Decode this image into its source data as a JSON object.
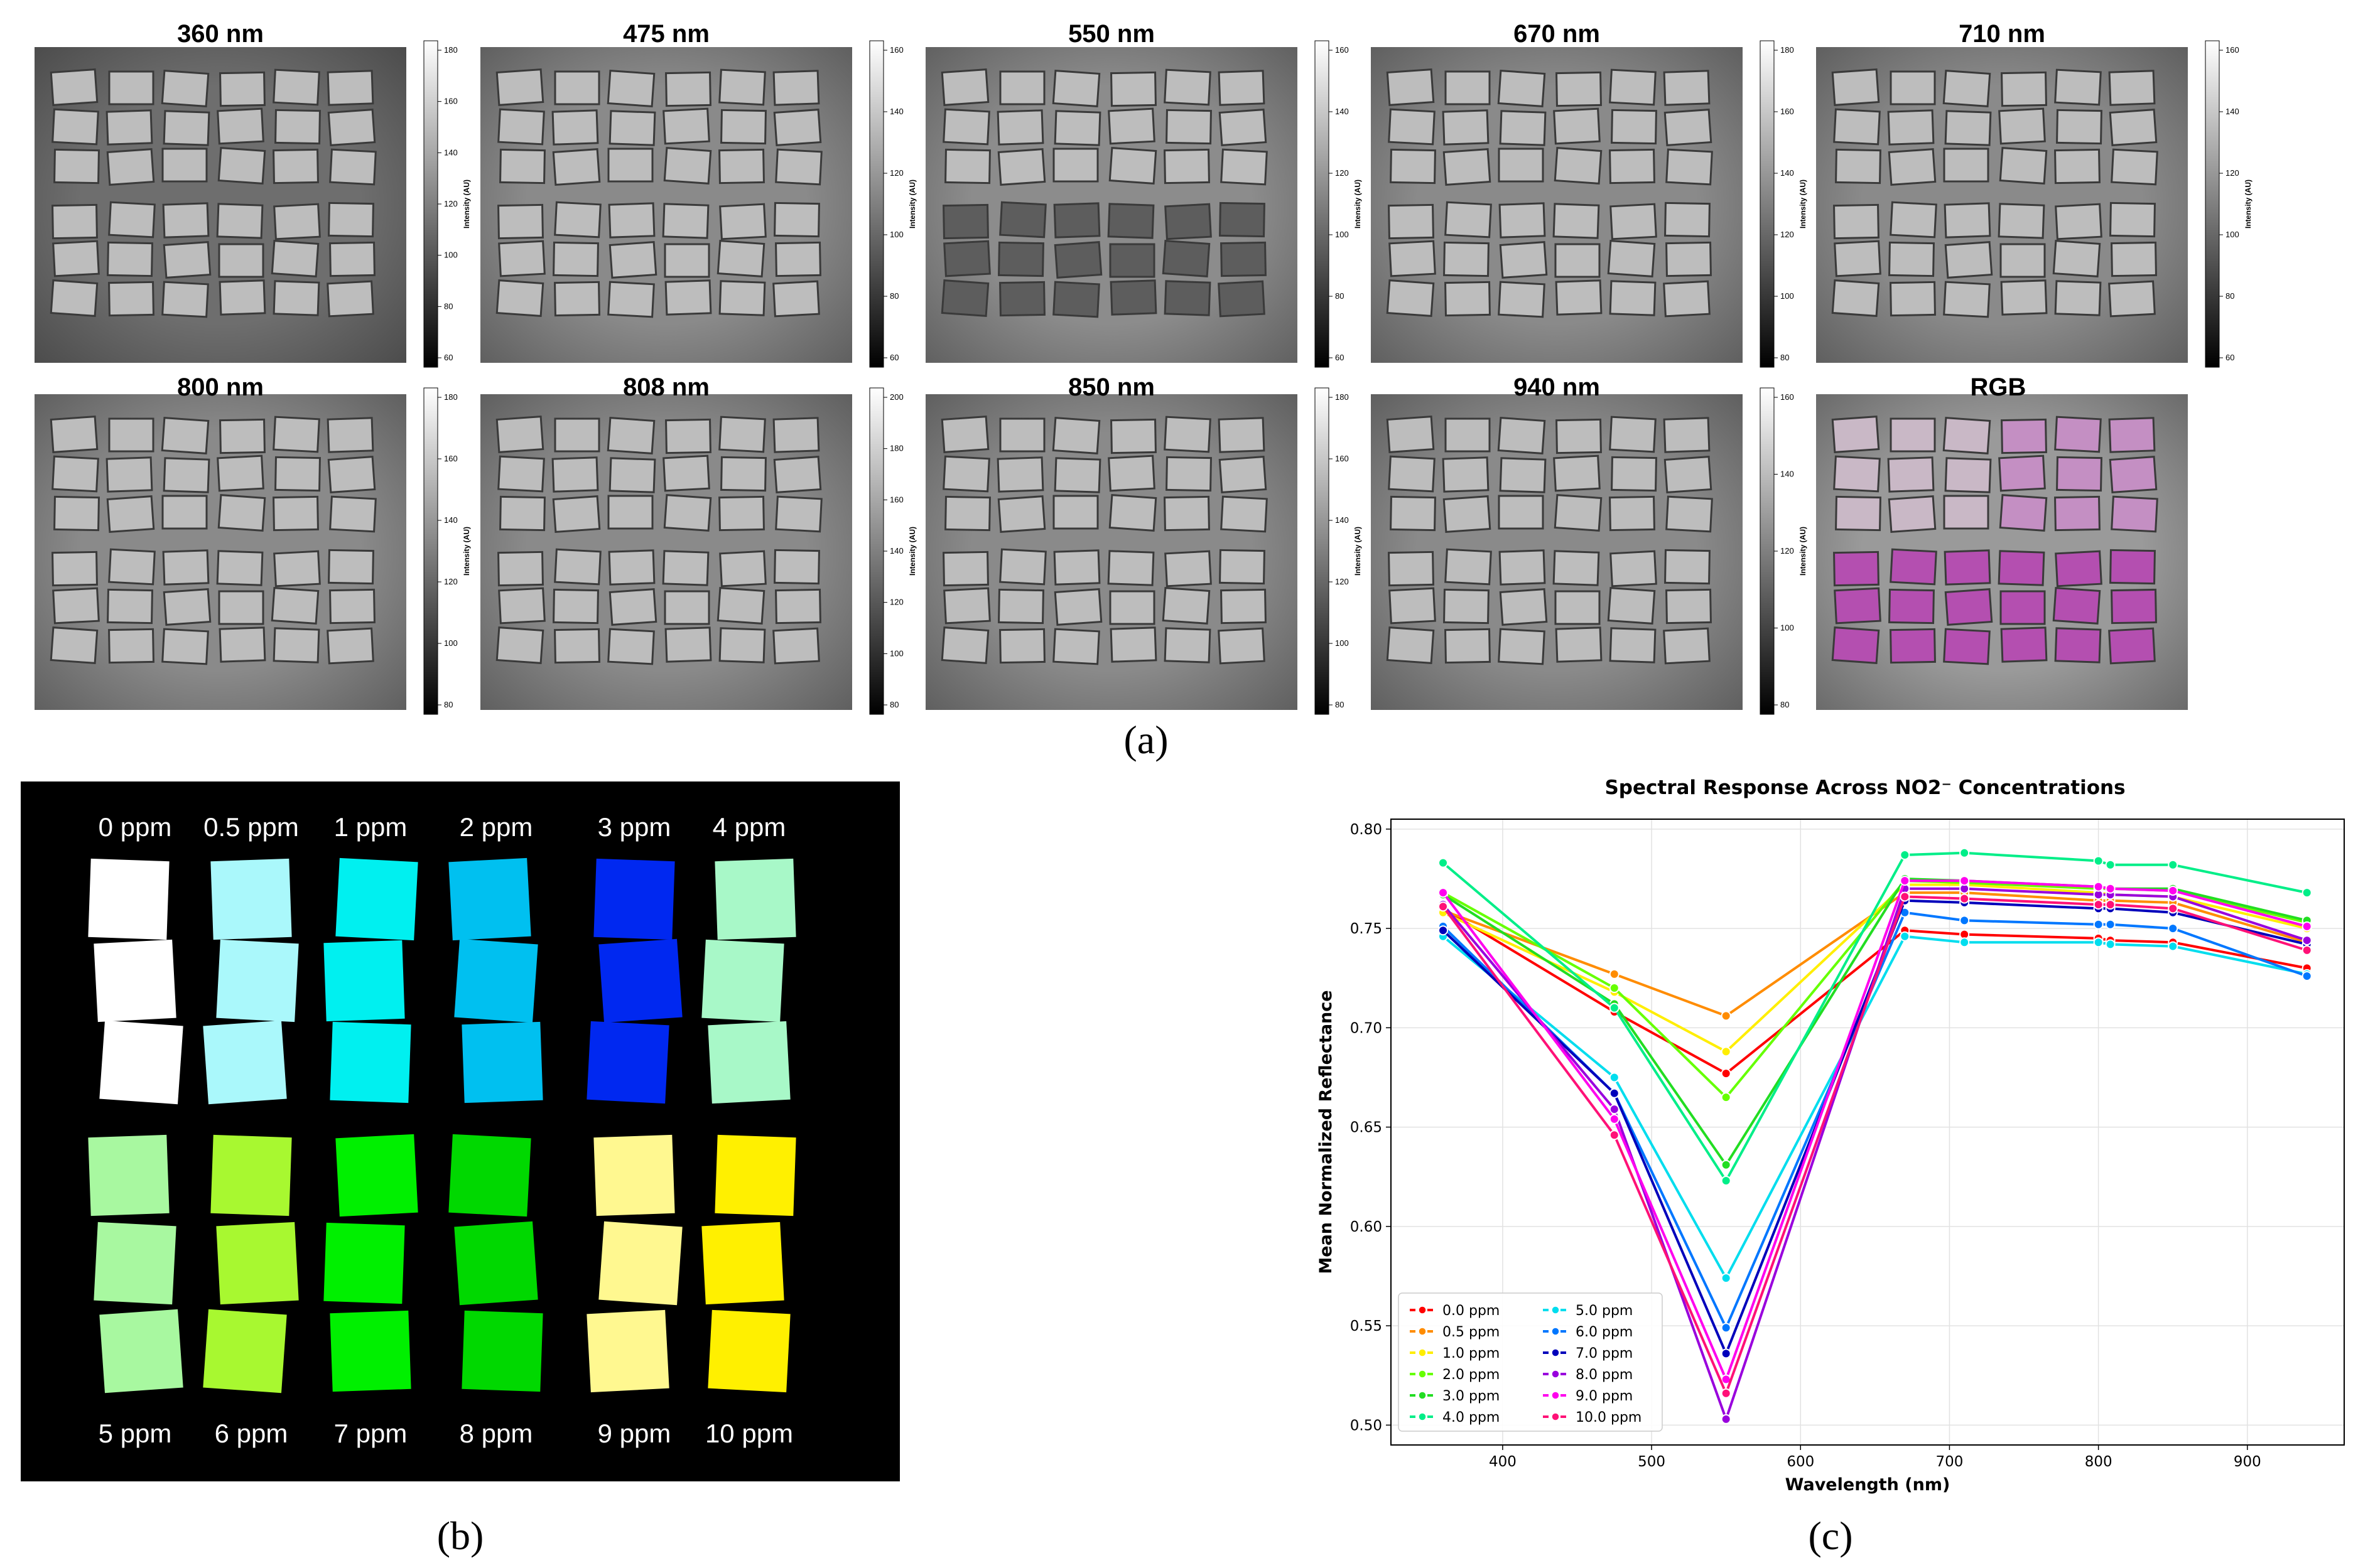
{
  "panel_a": {
    "label": "(a)",
    "tiles": [
      {
        "title": "360 nm",
        "tone": "#6e6e6e",
        "colorbar": {
          "label": "Intensity (AU)",
          "ticks": [
            "180",
            "160",
            "140",
            "120",
            "100",
            "80",
            "60"
          ]
        }
      },
      {
        "title": "475 nm",
        "tone": "#8a8a8a",
        "colorbar": {
          "label": "Intensity (AU)",
          "ticks": [
            "160",
            "140",
            "120",
            "100",
            "80",
            "60"
          ]
        }
      },
      {
        "title": "550 nm",
        "tone": "#8c8c8c",
        "colorbar": {
          "label": "Intensity (AU)",
          "ticks": [
            "160",
            "140",
            "120",
            "100",
            "80",
            "60"
          ]
        }
      },
      {
        "title": "670 nm",
        "tone": "#8a8a8a",
        "colorbar": {
          "label": "Intensity (AU)",
          "ticks": [
            "180",
            "160",
            "140",
            "120",
            "100",
            "80"
          ]
        }
      },
      {
        "title": "710 nm",
        "tone": "#8a8a8a",
        "colorbar": {
          "label": "Intensity (AU)",
          "ticks": [
            "160",
            "140",
            "120",
            "100",
            "80",
            "60"
          ]
        }
      },
      {
        "title": "800 nm",
        "tone": "#8a8a8a",
        "colorbar": {
          "label": "Intensity (AU)",
          "ticks": [
            "180",
            "160",
            "140",
            "120",
            "100",
            "80"
          ]
        }
      },
      {
        "title": "808 nm",
        "tone": "#8a8a8a",
        "colorbar": {
          "label": "Intensity (AU)",
          "ticks": [
            "200",
            "180",
            "160",
            "140",
            "120",
            "100",
            "80"
          ]
        }
      },
      {
        "title": "850 nm",
        "tone": "#8a8a8a",
        "colorbar": {
          "label": "Intensity (AU)",
          "ticks": [
            "180",
            "160",
            "140",
            "120",
            "100",
            "80"
          ]
        }
      },
      {
        "title": "940 nm",
        "tone": "#8a8a8a",
        "colorbar": {
          "label": "Intensity (AU)",
          "ticks": [
            "160",
            "140",
            "120",
            "100",
            "80"
          ]
        }
      },
      {
        "title": "RGB",
        "tone": "#9a9a9a",
        "colorbar": null
      }
    ]
  },
  "panel_b": {
    "label": "(b)",
    "top_labels": [
      "0 ppm",
      "0.5 ppm",
      "1 ppm",
      "2 ppm",
      "3 ppm",
      "4 ppm"
    ],
    "bottom_labels": [
      "5 ppm",
      "6 ppm",
      "7 ppm",
      "8 ppm",
      "9 ppm",
      "10 ppm"
    ],
    "top_colors": [
      "#ffffff",
      "#aaf8fb",
      "#00f0f0",
      "#00c0f0",
      "#0028f0",
      "#a8f8c8"
    ],
    "bottom_colors": [
      "#a8f8a0",
      "#a8f830",
      "#00f000",
      "#00d800",
      "#fff890",
      "#fff000"
    ]
  },
  "panel_c": {
    "label": "(c)",
    "legend_labels": [
      "0.0 ppm",
      "0.5 ppm",
      "1.0 ppm",
      "2.0 ppm",
      "3.0 ppm",
      "4.0 ppm",
      "5.0 ppm",
      "6.0 ppm",
      "7.0 ppm",
      "8.0 ppm",
      "9.0 ppm",
      "10.0 ppm"
    ]
  },
  "chart_data": {
    "type": "line",
    "title": "Spectral Response Across NO2⁻ Concentrations",
    "xlabel": "Wavelength (nm)",
    "ylabel": "Mean Normalized Reflectance",
    "xlim": [
      325,
      965
    ],
    "ylim": [
      0.49,
      0.805
    ],
    "xticks": [
      400,
      500,
      600,
      700,
      800,
      900
    ],
    "yticks": [
      0.5,
      0.55,
      0.6,
      0.65,
      0.7,
      0.75,
      0.8
    ],
    "grid": true,
    "legend_position": "lower-left",
    "x": [
      360,
      475,
      550,
      670,
      710,
      800,
      808,
      850,
      940
    ],
    "series": [
      {
        "name": "0.0 ppm",
        "color": "#ff0000",
        "values": [
          0.76,
          0.708,
          0.677,
          0.749,
          0.747,
          0.745,
          0.744,
          0.743,
          0.73
        ]
      },
      {
        "name": "0.5 ppm",
        "color": "#ff8c00",
        "values": [
          0.759,
          0.727,
          0.706,
          0.768,
          0.768,
          0.764,
          0.764,
          0.763,
          0.743
        ]
      },
      {
        "name": "1.0 ppm",
        "color": "#ffee00",
        "values": [
          0.758,
          0.718,
          0.688,
          0.772,
          0.772,
          0.768,
          0.767,
          0.766,
          0.75
        ]
      },
      {
        "name": "2.0 ppm",
        "color": "#66ff00",
        "values": [
          0.768,
          0.72,
          0.665,
          0.774,
          0.773,
          0.77,
          0.77,
          0.769,
          0.753
        ]
      },
      {
        "name": "3.0 ppm",
        "color": "#22dd22",
        "values": [
          0.767,
          0.712,
          0.631,
          0.775,
          0.774,
          0.771,
          0.77,
          0.77,
          0.754
        ]
      },
      {
        "name": "4.0 ppm",
        "color": "#00ee88",
        "values": [
          0.783,
          0.71,
          0.623,
          0.787,
          0.788,
          0.784,
          0.782,
          0.782,
          0.768
        ]
      },
      {
        "name": "5.0 ppm",
        "color": "#00ddee",
        "values": [
          0.746,
          0.675,
          0.574,
          0.746,
          0.743,
          0.743,
          0.742,
          0.741,
          0.727
        ]
      },
      {
        "name": "6.0 ppm",
        "color": "#0077ff",
        "values": [
          0.751,
          0.667,
          0.549,
          0.758,
          0.754,
          0.752,
          0.752,
          0.75,
          0.726
        ]
      },
      {
        "name": "7.0 ppm",
        "color": "#0000bb",
        "values": [
          0.749,
          0.667,
          0.536,
          0.764,
          0.763,
          0.76,
          0.76,
          0.758,
          0.742
        ]
      },
      {
        "name": "8.0 ppm",
        "color": "#9900dd",
        "values": [
          0.762,
          0.659,
          0.503,
          0.77,
          0.77,
          0.767,
          0.767,
          0.766,
          0.744
        ]
      },
      {
        "name": "9.0 ppm",
        "color": "#ff00ee",
        "values": [
          0.768,
          0.654,
          0.523,
          0.774,
          0.774,
          0.771,
          0.77,
          0.769,
          0.751
        ]
      },
      {
        "name": "10.0 ppm",
        "color": "#ff1177",
        "values": [
          0.761,
          0.646,
          0.516,
          0.766,
          0.765,
          0.762,
          0.762,
          0.76,
          0.739
        ]
      }
    ]
  }
}
